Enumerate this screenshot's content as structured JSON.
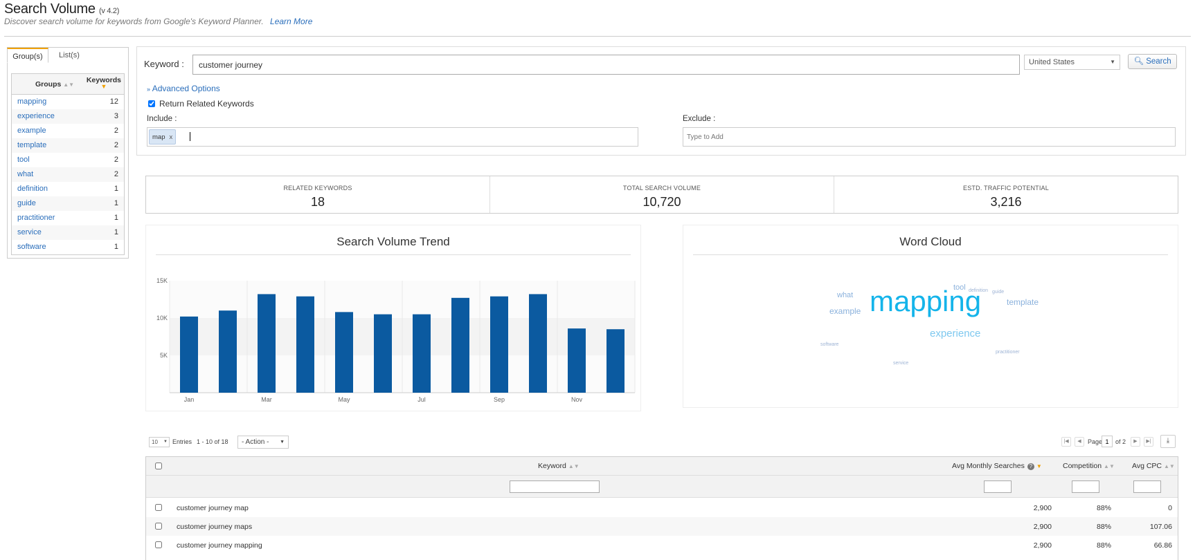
{
  "header": {
    "title": "Search Volume",
    "version": "(v 4.2)",
    "subtitle": "Discover search volume for keywords from Google's Keyword Planner.",
    "learn_more": "Learn More"
  },
  "left_panel": {
    "tabs": [
      "Group(s)",
      "List(s)"
    ],
    "col_groups": "Groups",
    "col_keywords": "Keywords",
    "groups": [
      {
        "name": "mapping",
        "count": "12"
      },
      {
        "name": "experience",
        "count": "3"
      },
      {
        "name": "example",
        "count": "2"
      },
      {
        "name": "template",
        "count": "2"
      },
      {
        "name": "tool",
        "count": "2"
      },
      {
        "name": "what",
        "count": "2"
      },
      {
        "name": "definition",
        "count": "1"
      },
      {
        "name": "guide",
        "count": "1"
      },
      {
        "name": "practitioner",
        "count": "1"
      },
      {
        "name": "service",
        "count": "1"
      },
      {
        "name": "software",
        "count": "1"
      }
    ]
  },
  "search": {
    "keyword_label": "Keyword :",
    "keyword_value": "customer journey",
    "country": "United States",
    "search_button": "Search",
    "advanced_options": "Advanced Options",
    "return_related": "Return Related Keywords",
    "include_label": "Include :",
    "include_tag": "map",
    "include_tag_remove": "x",
    "exclude_label": "Exclude :",
    "exclude_placeholder": "Type to Add"
  },
  "stats": [
    {
      "label": "RELATED KEYWORDS",
      "value": "18"
    },
    {
      "label": "TOTAL SEARCH VOLUME",
      "value": "10,720"
    },
    {
      "label": "ESTD. TRAFFIC POTENTIAL",
      "value": "3,216"
    }
  ],
  "chart_data": {
    "type": "bar",
    "title": "Search Volume Trend",
    "categories": [
      "Jan",
      "Feb",
      "Mar",
      "Apr",
      "May",
      "Jun",
      "Jul",
      "Aug",
      "Sep",
      "Oct",
      "Nov",
      "Dec"
    ],
    "tick_labels_shown": [
      "Jan",
      "Mar",
      "May",
      "Jul",
      "Sep",
      "Nov"
    ],
    "values": [
      10200,
      11000,
      13200,
      12900,
      10800,
      10500,
      10500,
      12700,
      12900,
      13200,
      8600,
      8500
    ],
    "yticks": [
      5000,
      10000,
      15000
    ],
    "ytick_labels": [
      "5K",
      "10K",
      "15K"
    ],
    "ylim": [
      0,
      15000
    ],
    "bar_color": "#0b5aa0",
    "grid": true
  },
  "word_cloud": {
    "title": "Word Cloud",
    "words": [
      {
        "text": "mapping",
        "color": "#14b4ea"
      },
      {
        "text": "experience",
        "color": "#7ec8ef"
      },
      {
        "text": "example",
        "color": "#8ab1dc"
      },
      {
        "text": "template",
        "color": "#8ab1dc"
      },
      {
        "text": "tool",
        "color": "#8ab1dc"
      },
      {
        "text": "what",
        "color": "#8ab1dc"
      },
      {
        "text": "definition",
        "color": "#9db3d4"
      },
      {
        "text": "guide",
        "color": "#9db3d4"
      },
      {
        "text": "practitioner",
        "color": "#9db3d4"
      },
      {
        "text": "service",
        "color": "#9db3d4"
      },
      {
        "text": "software",
        "color": "#9db3d4"
      }
    ]
  },
  "results": {
    "entries_value": "10",
    "entries_label": "Entries",
    "range": "1 - 10 of 18",
    "action": "- Action -",
    "page_label": "Page",
    "page_value": "1",
    "of_pages": "of 2",
    "columns": {
      "keyword": "Keyword",
      "avg_monthly": "Avg Monthly Searches",
      "competition": "Competition",
      "avg_cpc": "Avg CPC"
    },
    "rows": [
      {
        "keyword": "customer journey map",
        "searches": "2,900",
        "competition": "88%",
        "cpc": "0"
      },
      {
        "keyword": "customer journey maps",
        "searches": "2,900",
        "competition": "88%",
        "cpc": "107.06"
      },
      {
        "keyword": "customer journey mapping",
        "searches": "2,900",
        "competition": "88%",
        "cpc": "66.86"
      }
    ]
  }
}
